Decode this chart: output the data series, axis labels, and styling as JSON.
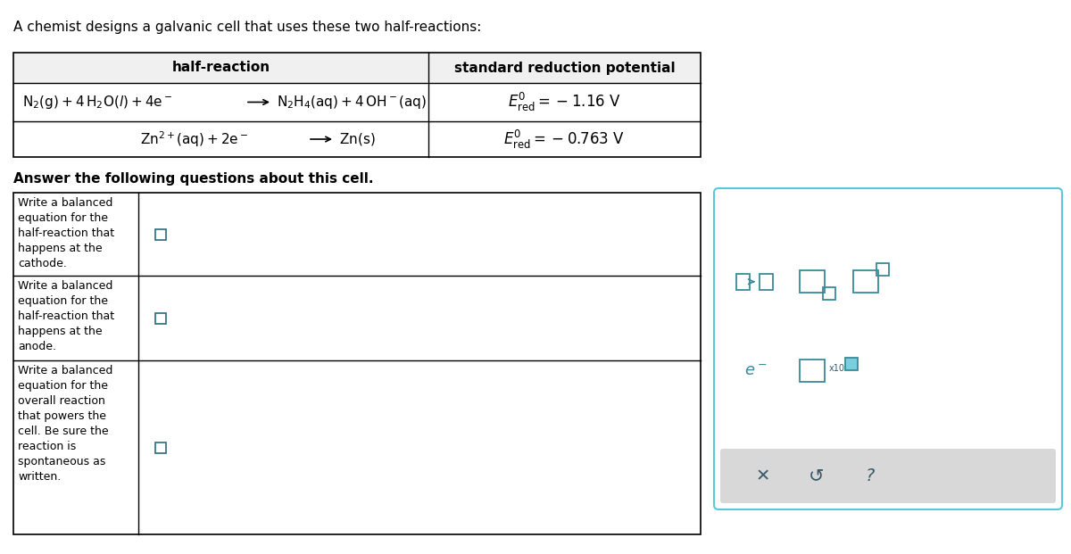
{
  "title": "A chemist designs a galvanic cell that uses these two half-reactions:",
  "answer_text": "Answer the following questions about this cell.",
  "table_header_col1": "half-reaction",
  "table_header_col2": "standard reduction potential",
  "row1_reaction": "N₂(g)+4 H₂O(l)+4e⁻ → N₂H₄(aq)+4 OH⁻(aq)",
  "row1_potential": "E°ʳₑᵈ = −1.16 V",
  "row2_reaction": "Zn²⁺(aq)+2e⁻ → Zn(s)",
  "row2_potential": "E°ʳₑᵈ = −0.763 V",
  "question1": "Write a balanced\nequation for the\nhalf-reaction that\nhappens at the\ncathode.",
  "question2": "Write a balanced\nequation for the\nhalf-reaction that\nhappens at the\nanode.",
  "question3": "Write a balanced\nequation for the\noverall reaction\nthat powers the\ncell. Be sure the\nreaction is\nspontaneous as\nwritten.",
  "bg_color": "#ffffff",
  "table_border_color": "#000000",
  "panel_border_color": "#5bc8d8",
  "panel_bg_color": "#ffffff",
  "panel_button_bg": "#e0e0e0",
  "symbol_color": "#3a7a8a",
  "checkbox_color": "#3a7a8a"
}
